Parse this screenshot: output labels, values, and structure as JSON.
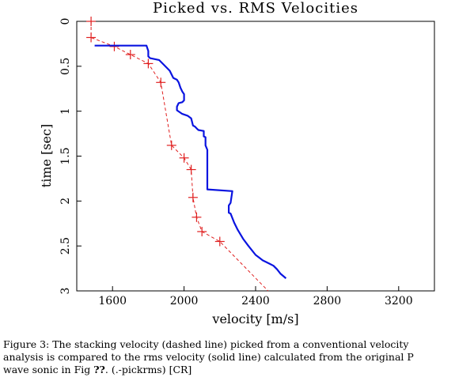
{
  "chart_data": {
    "type": "line",
    "title": "Picked vs. RMS Velocities",
    "xlabel": "velocity [m/s]",
    "ylabel": "time [sec]",
    "xlim": [
      1400,
      3400
    ],
    "ylim": [
      3,
      0
    ],
    "x_ticks": [
      1600,
      2000,
      2400,
      2800,
      3200
    ],
    "y_ticks": [
      0,
      0.5,
      1,
      1.5,
      2,
      2.5,
      3
    ],
    "y_tick_labels": [
      "0",
      "0.5",
      "1",
      "1.5",
      "2",
      "2.5",
      "3"
    ],
    "grid": false,
    "series": [
      {
        "style": "dashed line with plus markers",
        "color": "#e02020",
        "x": [
          1480,
          1480,
          1610,
          1700,
          1800,
          1870,
          1930,
          2000,
          2040,
          2050,
          2070,
          2100,
          2200,
          2470
        ],
        "y": [
          0.0,
          0.18,
          0.28,
          0.37,
          0.47,
          0.68,
          1.38,
          1.52,
          1.65,
          1.96,
          2.18,
          2.34,
          2.45,
          3.0
        ],
        "markers_x": [
          1480,
          1480,
          1610,
          1700,
          1800,
          1870,
          1930,
          2000,
          2040,
          2050,
          2070,
          2100,
          2200
        ],
        "markers_y": [
          0.0,
          0.18,
          0.28,
          0.37,
          0.47,
          0.68,
          1.38,
          1.52,
          1.65,
          1.96,
          2.18,
          2.34,
          2.45
        ]
      },
      {
        "style": "solid line",
        "color": "#0a14e0",
        "x": [
          1500,
          1790,
          1800,
          1800,
          1810,
          1860,
          1880,
          1920,
          1940,
          1960,
          1970,
          1980,
          1990,
          2000,
          2000,
          1990,
          1970,
          1960,
          1960,
          1990,
          2020,
          2040,
          2050,
          2060,
          2070,
          2080,
          2110,
          2110,
          2120,
          2120,
          2130,
          2130,
          2270,
          2260,
          2250,
          2250,
          2260,
          2280,
          2300,
          2330,
          2360,
          2380,
          2400,
          2420,
          2440,
          2460,
          2480,
          2500,
          2520,
          2540,
          2570
        ],
        "y": [
          0.27,
          0.27,
          0.33,
          0.39,
          0.41,
          0.43,
          0.47,
          0.55,
          0.63,
          0.65,
          0.68,
          0.74,
          0.78,
          0.81,
          0.88,
          0.9,
          0.91,
          0.95,
          0.99,
          1.03,
          1.05,
          1.08,
          1.16,
          1.17,
          1.19,
          1.21,
          1.22,
          1.28,
          1.29,
          1.38,
          1.43,
          1.87,
          1.89,
          2.02,
          2.05,
          2.13,
          2.14,
          2.24,
          2.32,
          2.42,
          2.5,
          2.55,
          2.6,
          2.63,
          2.66,
          2.68,
          2.7,
          2.72,
          2.76,
          2.81,
          2.86
        ]
      }
    ]
  },
  "caption": {
    "line1": "Figure 3: The stacking velocity (dashed line) picked from a conventional velocity",
    "line2": "analysis is compared to the rms velocity (solid line) calculated from the original P",
    "line3_before": "wave sonic in Fig ",
    "line3_ref": "??",
    "line3_after": ".   (.-pickrms) [CR]"
  }
}
